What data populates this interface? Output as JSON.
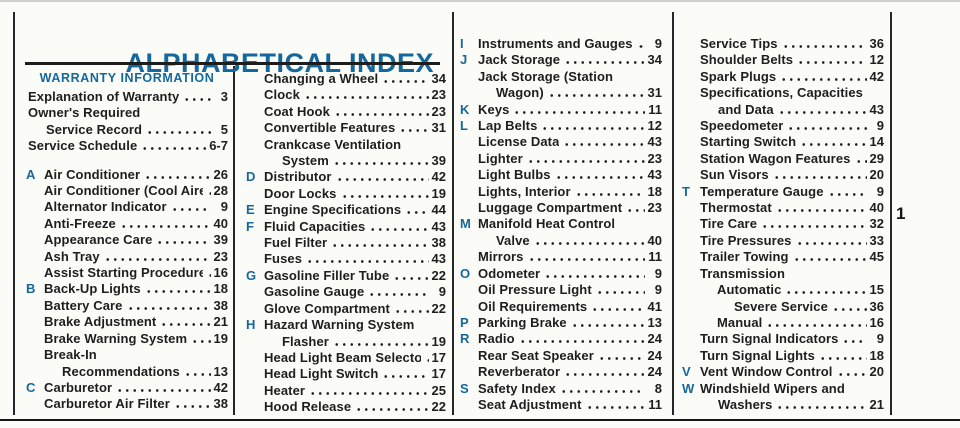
{
  "title": "ALPHABETICAL INDEX",
  "page_marker": "1",
  "colors": {
    "accent": "#15689e",
    "text": "#1e1e1e",
    "background": "#fbfbf7"
  },
  "warranty": {
    "heading": "WARRANTY INFORMATION",
    "items": [
      {
        "lines": [
          "Explanation of Warranty"
        ],
        "page": "3"
      },
      {
        "lines": [
          "Owner's Required",
          "Service Record"
        ],
        "page": "5"
      },
      {
        "lines": [
          "Service Schedule"
        ],
        "page": "6-7"
      }
    ]
  },
  "columns": [
    {
      "id": "col-1",
      "items": [
        {
          "letter": "A",
          "lines": [
            "Air Conditioner"
          ],
          "page": "26",
          "gap": true
        },
        {
          "lines": [
            "Air Conditioner (Cool Aire)"
          ],
          "page": "28"
        },
        {
          "lines": [
            "Alternator Indicator"
          ],
          "page": "9"
        },
        {
          "lines": [
            "Anti-Freeze"
          ],
          "page": "40"
        },
        {
          "lines": [
            "Appearance Care"
          ],
          "page": "39"
        },
        {
          "lines": [
            "Ash Tray"
          ],
          "page": "23"
        },
        {
          "lines": [
            "Assist Starting Procedure"
          ],
          "page": "16"
        },
        {
          "letter": "B",
          "lines": [
            "Back-Up Lights"
          ],
          "page": "18"
        },
        {
          "lines": [
            "Battery Care"
          ],
          "page": "38"
        },
        {
          "lines": [
            "Brake Adjustment"
          ],
          "page": "21"
        },
        {
          "lines": [
            "Brake Warning System"
          ],
          "page": "19"
        },
        {
          "lines": [
            "Break-In",
            "Recommendations"
          ],
          "page": "13"
        },
        {
          "letter": "C",
          "lines": [
            "Carburetor"
          ],
          "page": "42"
        },
        {
          "lines": [
            "Carburetor Air Filter"
          ],
          "page": "38"
        }
      ]
    },
    {
      "id": "col-2",
      "items": [
        {
          "lines": [
            "Changing a Wheel"
          ],
          "page": "34"
        },
        {
          "lines": [
            "Clock"
          ],
          "page": "23"
        },
        {
          "lines": [
            "Coat Hook"
          ],
          "page": "23"
        },
        {
          "lines": [
            "Convertible Features"
          ],
          "page": "31"
        },
        {
          "lines": [
            "Crankcase Ventilation",
            "System"
          ],
          "page": "39"
        },
        {
          "letter": "D",
          "lines": [
            "Distributor"
          ],
          "page": "42"
        },
        {
          "lines": [
            "Door Locks"
          ],
          "page": "19"
        },
        {
          "letter": "E",
          "lines": [
            "Engine Specifications"
          ],
          "page": "44"
        },
        {
          "letter": "F",
          "lines": [
            "Fluid Capacities"
          ],
          "page": "43"
        },
        {
          "lines": [
            "Fuel Filter"
          ],
          "page": "38"
        },
        {
          "lines": [
            "Fuses"
          ],
          "page": "43"
        },
        {
          "letter": "G",
          "lines": [
            "Gasoline Filler Tube"
          ],
          "page": "22"
        },
        {
          "lines": [
            "Gasoline Gauge"
          ],
          "page": "9"
        },
        {
          "lines": [
            "Glove Compartment"
          ],
          "page": "22"
        },
        {
          "letter": "H",
          "lines": [
            "Hazard Warning System",
            "Flasher"
          ],
          "page": "19"
        },
        {
          "lines": [
            "Head Light Beam Selector"
          ],
          "page": "17"
        },
        {
          "lines": [
            "Head Light Switch"
          ],
          "page": "17"
        },
        {
          "lines": [
            "Heater"
          ],
          "page": "25"
        },
        {
          "lines": [
            "Hood Release"
          ],
          "page": "22"
        }
      ]
    },
    {
      "id": "col-3",
      "items": [
        {
          "letter": "I",
          "lines": [
            "Instruments and Gauges"
          ],
          "page": "9"
        },
        {
          "letter": "J",
          "lines": [
            "Jack Storage"
          ],
          "page": "34"
        },
        {
          "lines": [
            "Jack Storage (Station",
            "Wagon)"
          ],
          "page": "31"
        },
        {
          "letter": "K",
          "lines": [
            "Keys"
          ],
          "page": "11"
        },
        {
          "letter": "L",
          "lines": [
            "Lap Belts"
          ],
          "page": "12"
        },
        {
          "lines": [
            "License Data"
          ],
          "page": "43"
        },
        {
          "lines": [
            "Lighter"
          ],
          "page": "23"
        },
        {
          "lines": [
            "Light Bulbs"
          ],
          "page": "43"
        },
        {
          "lines": [
            "Lights, Interior"
          ],
          "page": "18"
        },
        {
          "lines": [
            "Luggage Compartment"
          ],
          "page": "23"
        },
        {
          "letter": "M",
          "lines": [
            "Manifold Heat Control",
            "Valve"
          ],
          "page": "40"
        },
        {
          "lines": [
            "Mirrors"
          ],
          "page": "11"
        },
        {
          "letter": "O",
          "lines": [
            "Odometer"
          ],
          "page": "9"
        },
        {
          "lines": [
            "Oil Pressure Light"
          ],
          "page": "9"
        },
        {
          "lines": [
            "Oil Requirements"
          ],
          "page": "41"
        },
        {
          "letter": "P",
          "lines": [
            "Parking Brake"
          ],
          "page": "13"
        },
        {
          "letter": "R",
          "lines": [
            "Radio"
          ],
          "page": "24"
        },
        {
          "lines": [
            "Rear Seat Speaker"
          ],
          "page": "24"
        },
        {
          "lines": [
            "Reverberator"
          ],
          "page": "24"
        },
        {
          "letter": "S",
          "lines": [
            "Safety Index"
          ],
          "page": "8"
        },
        {
          "lines": [
            "Seat Adjustment"
          ],
          "page": "11"
        }
      ]
    },
    {
      "id": "col-4",
      "items": [
        {
          "lines": [
            "Service Tips"
          ],
          "page": "36"
        },
        {
          "lines": [
            "Shoulder Belts"
          ],
          "page": "12"
        },
        {
          "lines": [
            "Spark Plugs"
          ],
          "page": "42"
        },
        {
          "lines": [
            "Specifications, Capacities",
            "and Data"
          ],
          "page": "43"
        },
        {
          "lines": [
            "Speedometer"
          ],
          "page": "9"
        },
        {
          "lines": [
            "Starting Switch"
          ],
          "page": "14"
        },
        {
          "lines": [
            "Station Wagon Features"
          ],
          "page": "29"
        },
        {
          "lines": [
            "Sun Visors"
          ],
          "page": "20"
        },
        {
          "letter": "T",
          "lines": [
            "Temperature Gauge"
          ],
          "page": "9"
        },
        {
          "lines": [
            "Thermostat"
          ],
          "page": "40"
        },
        {
          "lines": [
            "Tire Care"
          ],
          "page": "32"
        },
        {
          "lines": [
            "Tire Pressures"
          ],
          "page": "33"
        },
        {
          "lines": [
            "Trailer Towing"
          ],
          "page": "45"
        },
        {
          "lines": [
            "Transmission"
          ],
          "page": null
        },
        {
          "lines": [
            "Automatic"
          ],
          "page": "15",
          "indent": 1
        },
        {
          "lines": [
            "Severe Service"
          ],
          "page": "36",
          "indent": 2
        },
        {
          "lines": [
            "Manual"
          ],
          "page": "16",
          "indent": 1
        },
        {
          "lines": [
            "Turn Signal Indicators"
          ],
          "page": "9"
        },
        {
          "lines": [
            "Turn Signal Lights"
          ],
          "page": "18"
        },
        {
          "letter": "V",
          "lines": [
            "Vent Window Control"
          ],
          "page": "20"
        },
        {
          "letter": "W",
          "lines": [
            "Windshield Wipers and",
            "Washers"
          ],
          "page": "21"
        }
      ]
    }
  ]
}
